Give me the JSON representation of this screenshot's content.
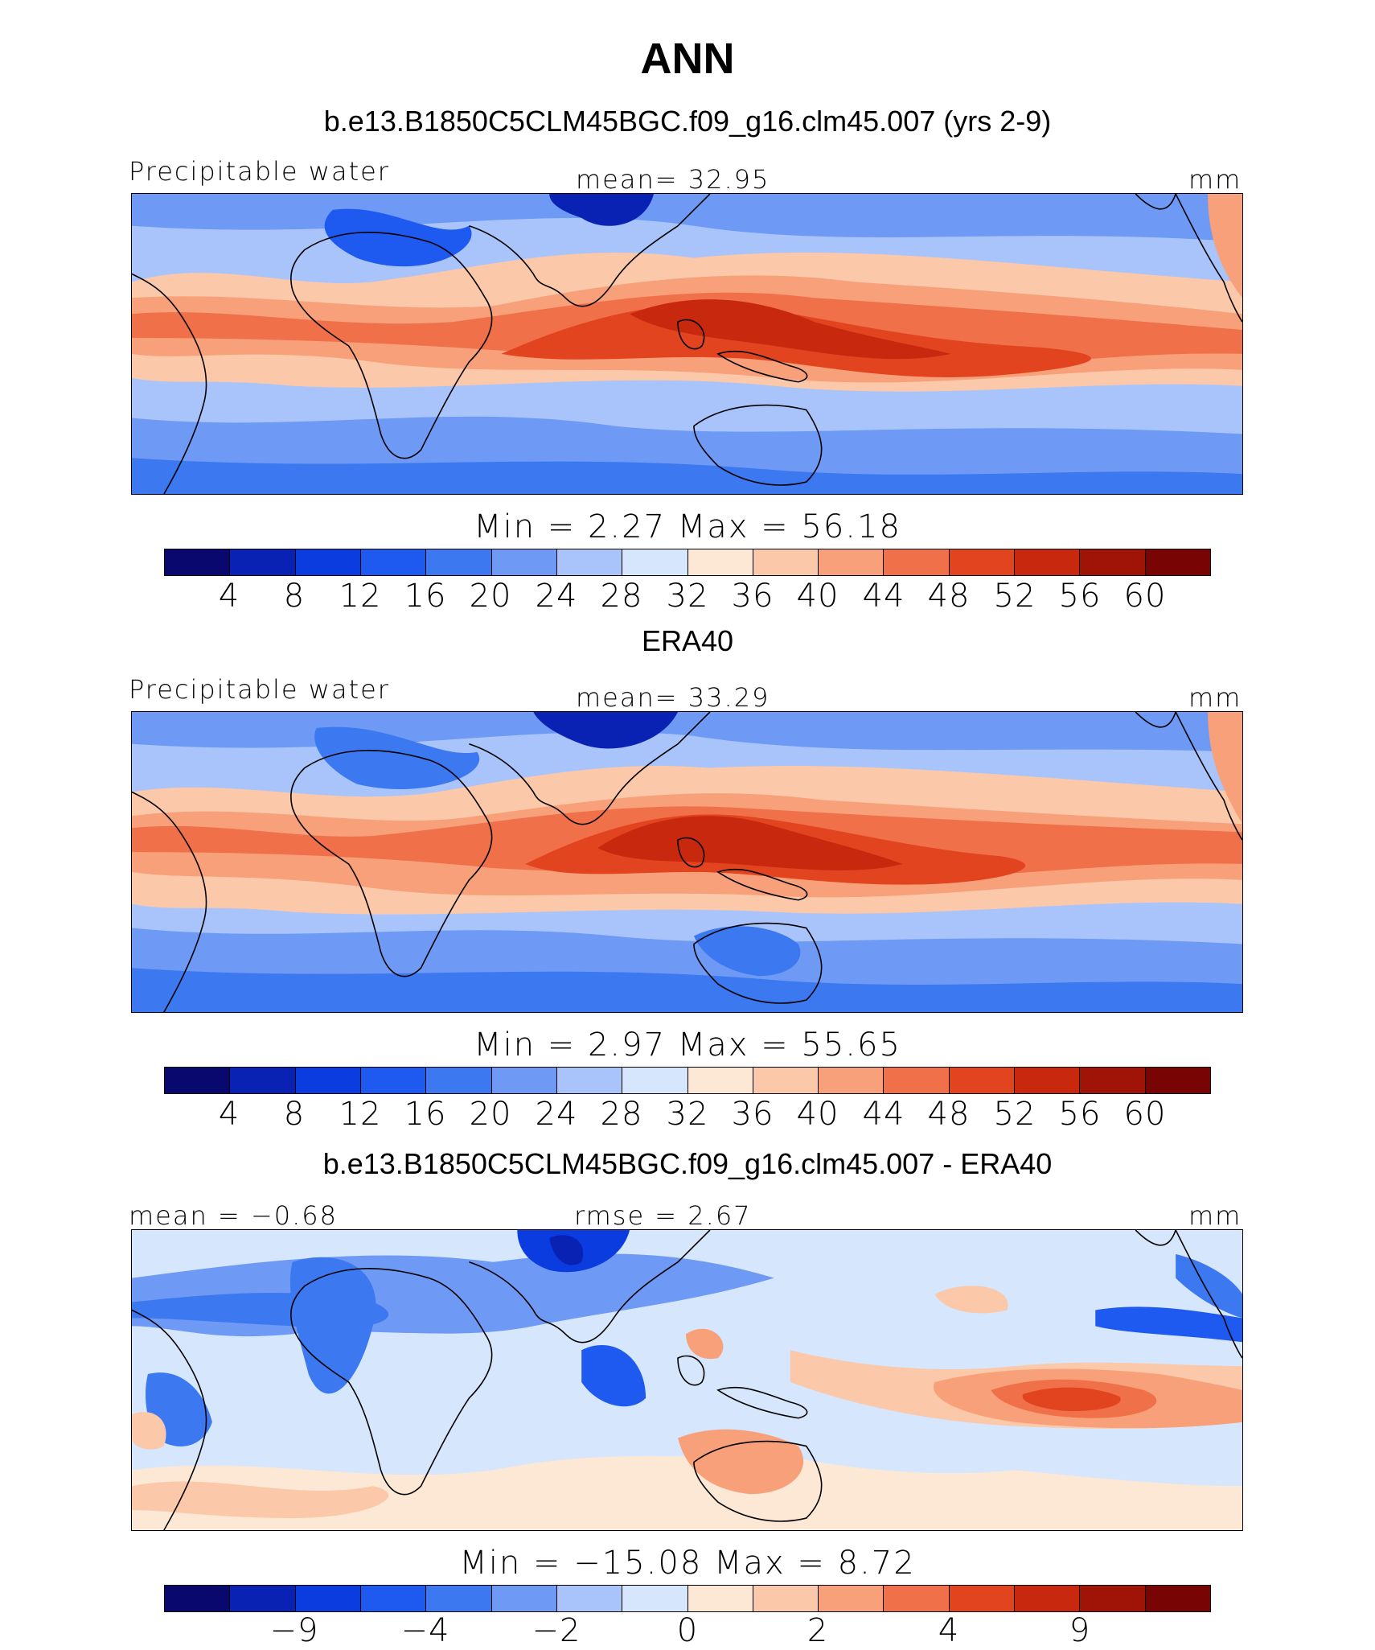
{
  "title": "ANN",
  "palette": [
    "#08086e",
    "#0a22b4",
    "#0a3ce0",
    "#1e5af0",
    "#3c78f0",
    "#6e9af5",
    "#a8c4fa",
    "#d6e6fc",
    "#fde8d6",
    "#fbc8aa",
    "#f7a07a",
    "#f0704a",
    "#e34420",
    "#c8280e",
    "#a01408",
    "#780404"
  ],
  "panels": [
    {
      "title": "b.e13.B1850C5CLM45BGC.f09_g16.clm45.007 (yrs 2-9)",
      "left_label": "Precipitable water",
      "center_label": "mean=   32.95",
      "right_label": "mm",
      "stats": "Min  =    2.27  Max  =    56.18",
      "ticks": [
        "4",
        "8",
        "12",
        "16",
        "20",
        "24",
        "28",
        "32",
        "36",
        "40",
        "44",
        "48",
        "52",
        "56",
        "60"
      ]
    },
    {
      "title": "ERA40",
      "left_label": "Precipitable water",
      "center_label": "mean=   33.29",
      "right_label": "mm",
      "stats": "Min  =    2.97  Max  =    55.65",
      "ticks": [
        "4",
        "8",
        "12",
        "16",
        "20",
        "24",
        "28",
        "32",
        "36",
        "40",
        "44",
        "48",
        "52",
        "56",
        "60"
      ]
    },
    {
      "title": "b.e13.B1850C5CLM45BGC.f09_g16.clm45.007 - ERA40",
      "left_label": "mean =   −0.68",
      "center_label": "rmse =    2.67",
      "right_label": "mm",
      "stats": "Min  = −15.08  Max  =     8.72",
      "ticks": [
        "−9",
        "−4",
        "−2",
        "0",
        "2",
        "4",
        "9"
      ]
    }
  ]
}
